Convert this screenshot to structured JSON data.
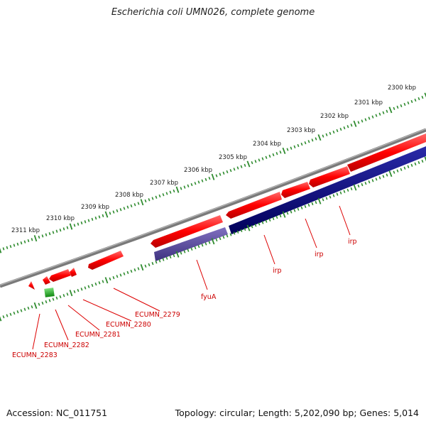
{
  "title": "Escherichia coli UMN026, complete genome",
  "footer": {
    "accession": "Accession: NC_011751",
    "summary": "Topology: circular; Length: 5,202,090 bp; Genes: 5,014"
  },
  "colors": {
    "backbone": "#7a7a7a",
    "forward_cds": "#ff0000",
    "reverse_cds_dark": "#000080",
    "reverse_cds_light": "#5a4a9c",
    "rna": "#22bb22",
    "ruler": "#2e8b2e",
    "label": "#cc0000"
  },
  "ruler_labels": [
    "2300 kbp",
    "2301 kbp",
    "2302 kbp",
    "2303 kbp",
    "2304 kbp",
    "2305 kbp",
    "2306 kbp",
    "2307 kbp",
    "2308 kbp",
    "2309 kbp",
    "2310 kbp",
    "2311 kbp"
  ],
  "gene_labels": {
    "irp_1": "irp",
    "irp_2": "irp",
    "irp_3": "irp",
    "fyuA": "fyuA",
    "ecumn_2279": "ECUMN_2279",
    "ecumn_2280": "ECUMN_2280",
    "ecumn_2281": "ECUMN_2281",
    "ecumn_2282": "ECUMN_2282",
    "ecumn_2283": "ECUMN_2283"
  }
}
